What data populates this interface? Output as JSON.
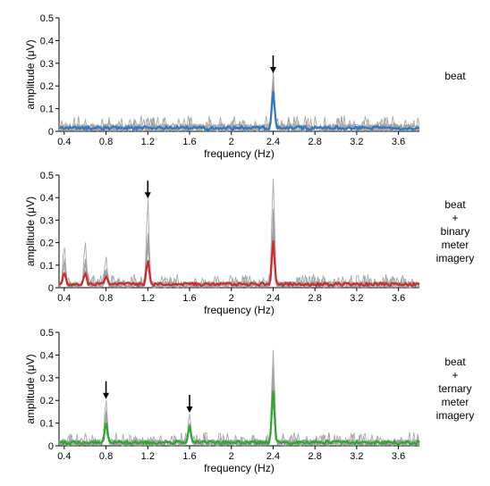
{
  "chart_data": [
    {
      "type": "line",
      "condition_label": [
        "beat"
      ],
      "xlabel": "frequency (Hz)",
      "ylabel": "amplitude (μV)",
      "xlim": [
        0.35,
        3.8
      ],
      "ylim": [
        0,
        0.5
      ],
      "xticks": [
        "0.4",
        "0.8",
        "1.2",
        "1.6",
        "2",
        "2.4",
        "2.8",
        "3.2",
        "3.6"
      ],
      "yticks": [
        "0",
        "0.1",
        "0.2",
        "0.3",
        "0.4",
        "0.5"
      ],
      "mean_color": "#2f78c4",
      "individual_color": "#a0a0a0",
      "arrows_at": [
        2.4
      ],
      "peaks": [
        {
          "x": 2.4,
          "mean": 0.16,
          "max": 0.24
        }
      ],
      "baseline_mean": 0.015,
      "baseline_max": 0.07
    },
    {
      "type": "line",
      "condition_label": [
        "beat",
        "+",
        "binary",
        "meter",
        "imagery"
      ],
      "xlabel": "frequency (Hz)",
      "ylabel": "amplitude (μV)",
      "xlim": [
        0.35,
        3.8
      ],
      "ylim": [
        0,
        0.5
      ],
      "xticks": [
        "0.4",
        "0.8",
        "1.2",
        "1.6",
        "2",
        "2.4",
        "2.8",
        "3.2",
        "3.6"
      ],
      "yticks": [
        "0",
        "0.1",
        "0.2",
        "0.3",
        "0.4",
        "0.5"
      ],
      "mean_color": "#d12a2a",
      "individual_color": "#a0a0a0",
      "arrows_at": [
        1.2
      ],
      "peaks": [
        {
          "x": 0.4,
          "mean": 0.05,
          "max": 0.17
        },
        {
          "x": 0.6,
          "mean": 0.05,
          "max": 0.19
        },
        {
          "x": 0.8,
          "mean": 0.03,
          "max": 0.12
        },
        {
          "x": 1.2,
          "mean": 0.11,
          "max": 0.38
        },
        {
          "x": 2.4,
          "mean": 0.19,
          "max": 0.48
        }
      ],
      "baseline_mean": 0.015,
      "baseline_max": 0.06
    },
    {
      "type": "line",
      "condition_label": [
        "beat",
        "+",
        "ternary",
        "meter",
        "imagery"
      ],
      "xlabel": "frequency (Hz)",
      "ylabel": "amplitude (μV)",
      "xlim": [
        0.35,
        3.8
      ],
      "ylim": [
        0,
        0.5
      ],
      "xticks": [
        "0.4",
        "0.8",
        "1.2",
        "1.6",
        "2",
        "2.4",
        "2.8",
        "3.2",
        "3.6"
      ],
      "yticks": [
        "0",
        "0.1",
        "0.2",
        "0.3",
        "0.4",
        "0.5"
      ],
      "mean_color": "#2da82d",
      "individual_color": "#a0a0a0",
      "arrows_at": [
        0.8,
        1.6
      ],
      "peaks": [
        {
          "x": 0.8,
          "mean": 0.09,
          "max": 0.19
        },
        {
          "x": 1.6,
          "mean": 0.07,
          "max": 0.13
        },
        {
          "x": 2.4,
          "mean": 0.22,
          "max": 0.42
        }
      ],
      "baseline_mean": 0.015,
      "baseline_max": 0.06
    }
  ]
}
